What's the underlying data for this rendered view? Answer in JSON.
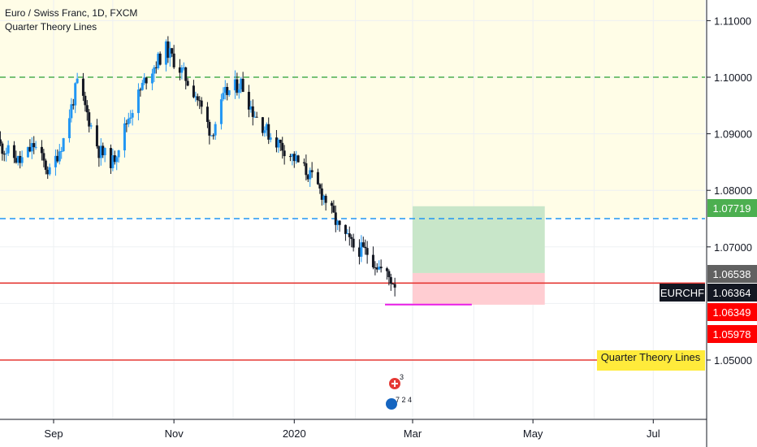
{
  "header": {
    "symbol_title": "Euro / Swiss Franc, 1D, FXCM",
    "indicator_title": "Quarter Theory Lines"
  },
  "colors": {
    "up_candle": "#2196f3",
    "down_candle": "#131722",
    "shaded_zone": "#fffde7",
    "green_dash": "#4caf50",
    "blue_dash": "#2196f3",
    "red_line": "#e53935",
    "magenta_line": "#e91ee6",
    "target_zone": "#c8e6c9",
    "stop_zone": "#ffcdd2"
  },
  "chart_data": {
    "type": "candlestick",
    "symbol": "EURCHF",
    "x_axis": {
      "ticks": [
        "Sep",
        "Nov",
        "2020",
        "Mar",
        "May",
        "Jul"
      ]
    },
    "y_axis": {
      "ticks": [
        "1.11000",
        "1.10000",
        "1.09000",
        "1.08000",
        "1.07000",
        "1.05000"
      ],
      "range": [
        1.0415,
        1.1135
      ]
    },
    "series": [
      {
        "date": "2019-08-01",
        "close": 1.089
      },
      {
        "date": "2019-08-15",
        "close": 1.085
      },
      {
        "date": "2019-08-22",
        "close": 1.088
      },
      {
        "date": "2019-08-30",
        "close": 1.083
      },
      {
        "date": "2019-09-06",
        "close": 1.089
      },
      {
        "date": "2019-09-13",
        "close": 1.099
      },
      {
        "date": "2019-09-24",
        "close": 1.087
      },
      {
        "date": "2019-10-01",
        "close": 1.085
      },
      {
        "date": "2019-10-09",
        "close": 1.093
      },
      {
        "date": "2019-10-18",
        "close": 1.1
      },
      {
        "date": "2019-10-28",
        "close": 1.105
      },
      {
        "date": "2019-11-05",
        "close": 1.101
      },
      {
        "date": "2019-11-12",
        "close": 1.097
      },
      {
        "date": "2019-11-20",
        "close": 1.09
      },
      {
        "date": "2019-11-27",
        "close": 1.097
      },
      {
        "date": "2019-12-05",
        "close": 1.099
      },
      {
        "date": "2019-12-11",
        "close": 1.094
      },
      {
        "date": "2019-12-19",
        "close": 1.09
      },
      {
        "date": "2019-12-31",
        "close": 1.086
      },
      {
        "date": "2020-01-08",
        "close": 1.083
      },
      {
        "date": "2020-01-16",
        "close": 1.079
      },
      {
        "date": "2020-01-24",
        "close": 1.073
      },
      {
        "date": "2020-01-31",
        "close": 1.07
      },
      {
        "date": "2020-02-07",
        "close": 1.069
      },
      {
        "date": "2020-02-14",
        "close": 1.066
      },
      {
        "date": "2020-02-21",
        "close": 1.0636
      }
    ],
    "horizontal_lines": [
      {
        "price": 1.1,
        "style": "dashed",
        "color": "#4caf50"
      },
      {
        "price": 1.075,
        "style": "dashed",
        "color": "#2196f3"
      },
      {
        "price": 1.0636,
        "style": "solid",
        "color": "#e53935"
      },
      {
        "price": 1.05,
        "style": "solid",
        "color": "#e53935"
      }
    ],
    "shaded_zone": {
      "from": 1.075,
      "to": 1.1135
    },
    "position_tool": {
      "x_start": "2020-03-01",
      "x_end": "2020-05-07",
      "target": 1.07719,
      "entry": 1.06538,
      "stop": 1.05978
    },
    "support_segment": {
      "price": 1.0598,
      "x_start": "2020-02-16",
      "x_end": "2020-03-31"
    },
    "price_labels": [
      {
        "text": "1.07719",
        "bg": "#4caf50",
        "fg": "#ffffff",
        "price": 1.07719
      },
      {
        "text": "1.06538",
        "bg": "#616161",
        "fg": "#ffffff",
        "price": 1.06538
      },
      {
        "text": "EURCHF",
        "bg": "#131722",
        "fg": "#ffffff",
        "price": 1.06364,
        "kind": "tag"
      },
      {
        "text": "1.06364",
        "bg": "#131722",
        "fg": "#ffffff",
        "price": 1.06364
      },
      {
        "text": "1.06349",
        "bg": "#ff0000",
        "fg": "#ffffff",
        "price": 1.06349
      },
      {
        "text": "1.05978",
        "bg": "#ff0000",
        "fg": "#ffffff",
        "price": 1.05978
      },
      {
        "text": "Quarter Theory Lines",
        "bg": "#ffeb3b",
        "fg": "#131722",
        "price": 1.05,
        "kind": "tag"
      }
    ],
    "events": [
      {
        "text": "3"
      },
      {
        "text": "7 2 4"
      }
    ]
  }
}
